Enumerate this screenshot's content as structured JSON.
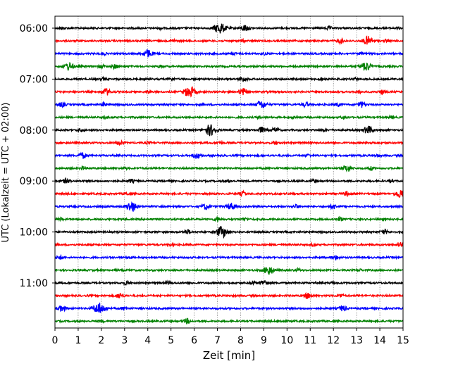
{
  "chart_data": {
    "type": "line",
    "title": "",
    "xlabel": "Zeit  [min]",
    "ylabel": "UTC (Lokalzeit = UTC + 02:00)",
    "xlim": [
      0,
      15
    ],
    "x_ticks": [
      "0",
      "1",
      "2",
      "3",
      "4",
      "5",
      "6",
      "7",
      "8",
      "9",
      "10",
      "11",
      "12",
      "13",
      "14",
      "15"
    ],
    "y_tick_labels": [
      "06:00",
      "07:00",
      "08:00",
      "09:00",
      "10:00",
      "11:00"
    ],
    "row_interval_min": 15,
    "start_time": "06:00",
    "grid": {
      "vertical": true,
      "style": "dotted"
    },
    "colors": [
      "#000000",
      "#ff0000",
      "#0000ff",
      "#008000"
    ],
    "traces": [
      {
        "time": "06:00",
        "color": "#000000",
        "events": [
          [
            0.3,
            0.2
          ],
          [
            4.6,
            0.2
          ],
          [
            7.1,
            1.0
          ],
          [
            8.2,
            0.6
          ],
          [
            11.8,
            0.3
          ],
          [
            14.8,
            0.15
          ]
        ]
      },
      {
        "time": "06:15",
        "color": "#ff0000",
        "events": [
          [
            5.1,
            0.2
          ],
          [
            8.1,
            0.2
          ],
          [
            12.3,
            0.4
          ],
          [
            13.5,
            0.8
          ],
          [
            14.3,
            0.2
          ]
        ]
      },
      {
        "time": "06:30",
        "color": "#0000ff",
        "events": [
          [
            2.1,
            0.2
          ],
          [
            4.0,
            0.7
          ],
          [
            7.7,
            0.2
          ],
          [
            9.0,
            0.2
          ],
          [
            13.2,
            0.2
          ]
        ]
      },
      {
        "time": "06:45",
        "color": "#008000",
        "events": [
          [
            0.6,
            0.7
          ],
          [
            2.0,
            0.3
          ],
          [
            2.6,
            0.4
          ],
          [
            4.5,
            0.2
          ],
          [
            13.4,
            0.8
          ]
        ]
      },
      {
        "time": "07:00",
        "color": "#000000",
        "events": [
          [
            2.1,
            0.2
          ],
          [
            5.0,
            0.3
          ],
          [
            8.1,
            0.5
          ],
          [
            11.5,
            0.2
          ],
          [
            12.9,
            0.2
          ]
        ]
      },
      {
        "time": "07:15",
        "color": "#ff0000",
        "events": [
          [
            2.2,
            0.6
          ],
          [
            4.0,
            0.2
          ],
          [
            5.8,
            1.0
          ],
          [
            8.1,
            0.6
          ],
          [
            13.1,
            0.2
          ],
          [
            14.1,
            0.4
          ]
        ]
      },
      {
        "time": "07:30",
        "color": "#0000ff",
        "events": [
          [
            0.3,
            0.4
          ],
          [
            2.1,
            0.3
          ],
          [
            8.9,
            0.7
          ],
          [
            10.8,
            0.4
          ],
          [
            12.2,
            0.3
          ],
          [
            13.2,
            0.5
          ]
        ]
      },
      {
        "time": "07:45",
        "color": "#008000",
        "events": [
          [
            2.2,
            0.2
          ],
          [
            8.8,
            0.2
          ],
          [
            10.3,
            0.2
          ],
          [
            12.5,
            0.3
          ],
          [
            14.5,
            0.2
          ]
        ]
      },
      {
        "time": "08:00",
        "color": "#000000",
        "events": [
          [
            1.1,
            0.3
          ],
          [
            6.7,
            1.0
          ],
          [
            8.9,
            0.5
          ],
          [
            9.5,
            0.4
          ],
          [
            11.6,
            0.2
          ],
          [
            13.5,
            0.7
          ]
        ]
      },
      {
        "time": "08:15",
        "color": "#ff0000",
        "events": [
          [
            2.8,
            0.4
          ],
          [
            4.0,
            0.2
          ],
          [
            7.1,
            0.2
          ],
          [
            9.5,
            0.3
          ],
          [
            13.7,
            0.2
          ]
        ]
      },
      {
        "time": "08:30",
        "color": "#0000ff",
        "events": [
          [
            1.2,
            0.5
          ],
          [
            6.1,
            0.5
          ],
          [
            10.9,
            0.2
          ],
          [
            13.9,
            0.2
          ]
        ]
      },
      {
        "time": "08:45",
        "color": "#008000",
        "events": [
          [
            1.2,
            0.3
          ],
          [
            3.0,
            0.2
          ],
          [
            12.6,
            0.6
          ],
          [
            13.6,
            0.3
          ]
        ]
      },
      {
        "time": "09:00",
        "color": "#000000",
        "events": [
          [
            0.5,
            0.4
          ],
          [
            3.3,
            0.3
          ],
          [
            7.5,
            0.2
          ],
          [
            11.2,
            0.3
          ],
          [
            14.5,
            0.2
          ]
        ]
      },
      {
        "time": "09:15",
        "color": "#ff0000",
        "events": [
          [
            3.1,
            0.2
          ],
          [
            8.1,
            0.4
          ],
          [
            12.6,
            0.4
          ],
          [
            14.9,
            0.8
          ]
        ]
      },
      {
        "time": "09:30",
        "color": "#0000ff",
        "events": [
          [
            3.3,
            0.9
          ],
          [
            6.5,
            0.5
          ],
          [
            7.6,
            0.6
          ],
          [
            10.4,
            0.3
          ],
          [
            12.0,
            0.4
          ]
        ]
      },
      {
        "time": "09:45",
        "color": "#008000",
        "events": [
          [
            0.2,
            0.2
          ],
          [
            7.0,
            0.4
          ],
          [
            8.2,
            0.2
          ],
          [
            12.3,
            0.3
          ]
        ]
      },
      {
        "time": "10:00",
        "color": "#000000",
        "events": [
          [
            5.7,
            0.4
          ],
          [
            7.2,
            1.0
          ],
          [
            14.2,
            0.4
          ]
        ]
      },
      {
        "time": "10:15",
        "color": "#ff0000",
        "events": [
          [
            5.0,
            0.2
          ],
          [
            11.1,
            0.2
          ],
          [
            14.9,
            0.5
          ]
        ]
      },
      {
        "time": "10:30",
        "color": "#0000ff",
        "events": [
          [
            0.2,
            0.3
          ],
          [
            3.2,
            0.2
          ],
          [
            12.1,
            0.4
          ]
        ]
      },
      {
        "time": "10:45",
        "color": "#008000",
        "events": [
          [
            9.2,
            0.8
          ],
          [
            10.5,
            0.2
          ],
          [
            13.1,
            0.2
          ]
        ]
      },
      {
        "time": "11:00",
        "color": "#000000",
        "events": [
          [
            3.1,
            0.3
          ],
          [
            4.9,
            0.3
          ],
          [
            9.0,
            0.5
          ],
          [
            8.5,
            0.3
          ],
          [
            12.0,
            0.2
          ]
        ]
      },
      {
        "time": "11:15",
        "color": "#ff0000",
        "events": [
          [
            2.8,
            0.5
          ],
          [
            10.9,
            0.5
          ],
          [
            12.3,
            0.3
          ]
        ]
      },
      {
        "time": "11:30",
        "color": "#0000ff",
        "events": [
          [
            0.3,
            0.5
          ],
          [
            1.9,
            1.0
          ],
          [
            3.0,
            0.3
          ],
          [
            12.4,
            0.5
          ]
        ]
      },
      {
        "time": "11:45",
        "color": "#008000",
        "events": [
          [
            2.0,
            0.2
          ],
          [
            5.7,
            0.4
          ],
          [
            9.8,
            0.2
          ]
        ]
      }
    ]
  }
}
